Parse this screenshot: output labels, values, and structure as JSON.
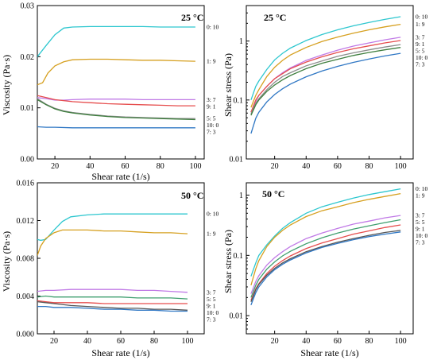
{
  "chart_data": [
    {
      "id": "a",
      "type": "line",
      "title": "25 °C",
      "xlabel": "Shear rate (1/s)",
      "ylabel": "Viscosity (Pa·s)",
      "xlim": [
        10,
        105
      ],
      "ylim": [
        0,
        0.03
      ],
      "yscale": "linear",
      "xticks": [
        20,
        40,
        60,
        80,
        100
      ],
      "yticks": [
        0.0,
        0.01,
        0.02,
        0.03
      ],
      "ytick_labels": [
        "0.00",
        "0.01",
        "0.02",
        "0.03"
      ],
      "series": [
        {
          "name": "0: 10",
          "color": "#2ec7cf",
          "x": [
            10,
            15,
            20,
            25,
            30,
            40,
            50,
            60,
            70,
            80,
            90,
            100
          ],
          "y": [
            0.02,
            0.0222,
            0.0243,
            0.0256,
            0.0258,
            0.0259,
            0.0259,
            0.0259,
            0.0259,
            0.0258,
            0.0258,
            0.0258
          ]
        },
        {
          "name": "1: 9",
          "color": "#d6a020",
          "x": [
            10,
            13,
            16,
            20,
            25,
            30,
            40,
            50,
            60,
            70,
            80,
            90,
            100
          ],
          "y": [
            0.0145,
            0.0149,
            0.0168,
            0.0182,
            0.019,
            0.0194,
            0.0195,
            0.0195,
            0.0194,
            0.0193,
            0.0193,
            0.0192,
            0.0191
          ]
        },
        {
          "name": "3: 7",
          "color": "#c07ae6",
          "x": [
            10,
            15,
            20,
            25,
            30,
            40,
            50,
            60,
            70,
            80,
            90,
            100
          ],
          "y": [
            0.012,
            0.0118,
            0.0115,
            0.0115,
            0.0116,
            0.0117,
            0.0117,
            0.0117,
            0.0116,
            0.0116,
            0.0116,
            0.0116
          ]
        },
        {
          "name": "9: 1",
          "color": "#e64d4d",
          "x": [
            10,
            15,
            20,
            30,
            40,
            50,
            60,
            70,
            80,
            90,
            100
          ],
          "y": [
            0.0124,
            0.012,
            0.0116,
            0.0112,
            0.011,
            0.0108,
            0.0107,
            0.0106,
            0.0105,
            0.0104,
            0.0104
          ]
        },
        {
          "name": "5: 5",
          "color": "#8c8c8c",
          "x": [
            10,
            15,
            20,
            25,
            30,
            40,
            50,
            60,
            70,
            80,
            90,
            100
          ],
          "y": [
            0.0118,
            0.0107,
            0.0099,
            0.0094,
            0.0091,
            0.0087,
            0.0084,
            0.0082,
            0.0081,
            0.008,
            0.0079,
            0.0079
          ]
        },
        {
          "name": "10: 0",
          "color": "#3f7f3f",
          "x": [
            10,
            15,
            20,
            25,
            30,
            40,
            50,
            60,
            70,
            80,
            90,
            100
          ],
          "y": [
            0.0116,
            0.0106,
            0.0098,
            0.0093,
            0.009,
            0.0086,
            0.0083,
            0.0081,
            0.008,
            0.0079,
            0.0078,
            0.0077
          ]
        },
        {
          "name": "7: 3",
          "color": "#2f77c4",
          "x": [
            10,
            15,
            20,
            30,
            40,
            50,
            60,
            70,
            80,
            90,
            100
          ],
          "y": [
            0.0063,
            0.0062,
            0.0062,
            0.0061,
            0.0061,
            0.0061,
            0.0061,
            0.0061,
            0.0061,
            0.0061,
            0.0061
          ]
        }
      ]
    },
    {
      "id": "b",
      "type": "line",
      "title": "25 °C",
      "xlabel": "",
      "ylabel": "Shear stress (Pa)",
      "xlim": [
        2,
        108
      ],
      "ylim": [
        0.01,
        4
      ],
      "yscale": "log",
      "xticks": [
        20,
        40,
        60,
        80,
        100
      ],
      "yticks": [
        0.01,
        0.1,
        1
      ],
      "ytick_labels": [
        "0.01",
        "0.1",
        "1"
      ],
      "series": [
        {
          "name": "0: 10",
          "color": "#2ec7cf",
          "x": [
            5,
            8,
            10,
            15,
            20,
            25,
            30,
            40,
            50,
            60,
            70,
            80,
            90,
            100
          ],
          "y": [
            0.1,
            0.17,
            0.21,
            0.33,
            0.48,
            0.62,
            0.76,
            1.02,
            1.29,
            1.55,
            1.81,
            2.07,
            2.33,
            2.59
          ]
        },
        {
          "name": "1: 9",
          "color": "#d6a020",
          "x": [
            5,
            8,
            10,
            15,
            20,
            25,
            30,
            40,
            50,
            60,
            70,
            80,
            90,
            100
          ],
          "y": [
            0.075,
            0.12,
            0.15,
            0.25,
            0.36,
            0.47,
            0.58,
            0.78,
            0.98,
            1.17,
            1.36,
            1.55,
            1.74,
            1.92
          ]
        },
        {
          "name": "3: 7",
          "color": "#c07ae6",
          "x": [
            5,
            8,
            10,
            15,
            20,
            25,
            30,
            40,
            50,
            60,
            70,
            80,
            90,
            100
          ],
          "y": [
            0.062,
            0.095,
            0.12,
            0.17,
            0.23,
            0.29,
            0.35,
            0.47,
            0.58,
            0.7,
            0.82,
            0.93,
            1.05,
            1.16
          ]
        },
        {
          "name": "9: 1",
          "color": "#e64d4d",
          "x": [
            5,
            8,
            10,
            15,
            20,
            25,
            30,
            40,
            50,
            60,
            70,
            80,
            90,
            100
          ],
          "y": [
            0.062,
            0.1,
            0.12,
            0.17,
            0.23,
            0.28,
            0.34,
            0.44,
            0.54,
            0.64,
            0.74,
            0.83,
            0.93,
            1.02
          ]
        },
        {
          "name": "5: 5",
          "color": "#8c8c8c",
          "x": [
            5,
            8,
            10,
            15,
            20,
            25,
            30,
            40,
            50,
            60,
            70,
            80,
            90,
            100
          ],
          "y": [
            0.058,
            0.088,
            0.105,
            0.15,
            0.2,
            0.25,
            0.29,
            0.38,
            0.46,
            0.55,
            0.63,
            0.71,
            0.79,
            0.87
          ]
        },
        {
          "name": "10: 0",
          "color": "#3f7f3f",
          "x": [
            5,
            8,
            10,
            15,
            20,
            25,
            30,
            40,
            50,
            60,
            70,
            80,
            90,
            100
          ],
          "y": [
            0.055,
            0.083,
            0.1,
            0.14,
            0.18,
            0.22,
            0.26,
            0.34,
            0.42,
            0.49,
            0.57,
            0.64,
            0.71,
            0.78
          ]
        },
        {
          "name": "7: 3",
          "color": "#2f77c4",
          "x": [
            5,
            8,
            10,
            15,
            20,
            25,
            30,
            40,
            50,
            60,
            70,
            80,
            90,
            100
          ],
          "y": [
            0.027,
            0.049,
            0.062,
            0.093,
            0.124,
            0.155,
            0.186,
            0.248,
            0.31,
            0.372,
            0.434,
            0.496,
            0.558,
            0.62
          ]
        }
      ]
    },
    {
      "id": "c",
      "type": "line",
      "title": "50 °C",
      "xlabel": "Shear rate (1/s)",
      "ylabel": "Viscosity (Pa·s)",
      "xlim": [
        10,
        110
      ],
      "ylim": [
        0,
        0.016
      ],
      "yscale": "linear",
      "xticks": [
        20,
        40,
        60,
        80,
        100
      ],
      "yticks": [
        0.0,
        0.004,
        0.008,
        0.012,
        0.016
      ],
      "ytick_labels": [
        "0.000",
        "0.004",
        "0.008",
        "0.012",
        "0.016"
      ],
      "series": [
        {
          "name": "0: 10",
          "color": "#2ec7cf",
          "x": [
            10,
            12,
            15,
            20,
            25,
            30,
            40,
            50,
            60,
            70,
            80,
            90,
            100
          ],
          "y": [
            0.01,
            0.0099,
            0.01,
            0.011,
            0.0119,
            0.0124,
            0.0126,
            0.0127,
            0.0127,
            0.0127,
            0.0127,
            0.0127,
            0.0127
          ]
        },
        {
          "name": "1: 9",
          "color": "#d6a020",
          "x": [
            10,
            12,
            15,
            20,
            25,
            30,
            40,
            50,
            60,
            70,
            80,
            90,
            100
          ],
          "y": [
            0.0083,
            0.0093,
            0.0101,
            0.0107,
            0.011,
            0.011,
            0.011,
            0.0109,
            0.0109,
            0.0108,
            0.0107,
            0.0107,
            0.0106
          ]
        },
        {
          "name": "3: 7",
          "color": "#c07ae6",
          "x": [
            10,
            15,
            20,
            30,
            40,
            50,
            60,
            70,
            80,
            90,
            100
          ],
          "y": [
            0.0045,
            0.0046,
            0.0046,
            0.0047,
            0.0047,
            0.0047,
            0.0047,
            0.0046,
            0.0046,
            0.0045,
            0.0044
          ]
        },
        {
          "name": "5: 5",
          "color": "#3f9f6f",
          "x": [
            10,
            15,
            20,
            30,
            40,
            50,
            60,
            70,
            80,
            90,
            100
          ],
          "y": [
            0.0039,
            0.004,
            0.0039,
            0.0039,
            0.0039,
            0.0039,
            0.0039,
            0.0038,
            0.0038,
            0.0038,
            0.0037
          ]
        },
        {
          "name": "9: 1",
          "color": "#e64d4d",
          "x": [
            10,
            15,
            20,
            30,
            40,
            50,
            60,
            70,
            80,
            90,
            100
          ],
          "y": [
            0.0035,
            0.0034,
            0.0033,
            0.0033,
            0.0033,
            0.0032,
            0.0032,
            0.0032,
            0.0032,
            0.0032,
            0.0032
          ]
        },
        {
          "name": "10: 0",
          "color": "#555555",
          "x": [
            10,
            15,
            20,
            30,
            40,
            50,
            60,
            70,
            80,
            90,
            100
          ],
          "y": [
            0.0034,
            0.0033,
            0.0032,
            0.003,
            0.0029,
            0.0028,
            0.0027,
            0.0027,
            0.0026,
            0.0026,
            0.0025
          ]
        },
        {
          "name": "7: 3",
          "color": "#2f77c4",
          "x": [
            10,
            15,
            20,
            30,
            40,
            50,
            60,
            70,
            80,
            90,
            100
          ],
          "y": [
            0.0029,
            0.0029,
            0.0028,
            0.0028,
            0.0027,
            0.0026,
            0.0026,
            0.0025,
            0.0025,
            0.0024,
            0.0024
          ]
        }
      ]
    },
    {
      "id": "d",
      "type": "line",
      "title": "50 °C",
      "xlabel": "Shear rate (1/s)",
      "ylabel": "Shear stress (Pa)",
      "xlim": [
        2,
        108
      ],
      "ylim": [
        0.005,
        1.6
      ],
      "yscale": "log",
      "xticks": [
        20,
        40,
        60,
        80,
        100
      ],
      "yticks": [
        0.01,
        0.1,
        1
      ],
      "ytick_labels": [
        "0.01",
        "0.1",
        "1"
      ],
      "series": [
        {
          "name": "0: 10",
          "color": "#2ec7cf",
          "x": [
            5,
            8,
            10,
            15,
            20,
            25,
            30,
            40,
            50,
            60,
            70,
            80,
            90,
            100
          ],
          "y": [
            0.045,
            0.075,
            0.1,
            0.15,
            0.21,
            0.28,
            0.35,
            0.5,
            0.64,
            0.76,
            0.89,
            1.02,
            1.14,
            1.27
          ]
        },
        {
          "name": "1: 9",
          "color": "#d6a020",
          "x": [
            5,
            8,
            10,
            15,
            20,
            25,
            30,
            40,
            50,
            60,
            70,
            80,
            90,
            100
          ],
          "y": [
            0.032,
            0.06,
            0.082,
            0.14,
            0.2,
            0.26,
            0.32,
            0.44,
            0.55,
            0.64,
            0.75,
            0.85,
            0.95,
            1.06
          ]
        },
        {
          "name": "3: 7",
          "color": "#c07ae6",
          "x": [
            5,
            8,
            10,
            15,
            20,
            25,
            30,
            40,
            50,
            60,
            70,
            80,
            90,
            100
          ],
          "y": [
            0.023,
            0.037,
            0.046,
            0.069,
            0.092,
            0.115,
            0.14,
            0.19,
            0.235,
            0.28,
            0.33,
            0.37,
            0.42,
            0.46
          ]
        },
        {
          "name": "5: 5",
          "color": "#3f9f6f",
          "x": [
            5,
            8,
            10,
            15,
            20,
            25,
            30,
            40,
            50,
            60,
            70,
            80,
            90,
            100
          ],
          "y": [
            0.02,
            0.032,
            0.04,
            0.059,
            0.078,
            0.098,
            0.117,
            0.156,
            0.195,
            0.234,
            0.273,
            0.31,
            0.35,
            0.39
          ]
        },
        {
          "name": "9: 1",
          "color": "#e64d4d",
          "x": [
            5,
            8,
            10,
            15,
            20,
            25,
            30,
            40,
            50,
            60,
            70,
            80,
            90,
            100
          ],
          "y": [
            0.018,
            0.028,
            0.034,
            0.05,
            0.066,
            0.082,
            0.098,
            0.13,
            0.16,
            0.19,
            0.225,
            0.255,
            0.29,
            0.32
          ]
        },
        {
          "name": "10: 0",
          "color": "#555555",
          "x": [
            5,
            8,
            10,
            15,
            20,
            25,
            30,
            40,
            50,
            60,
            70,
            80,
            90,
            100
          ],
          "y": [
            0.017,
            0.027,
            0.033,
            0.047,
            0.061,
            0.075,
            0.088,
            0.115,
            0.14,
            0.165,
            0.19,
            0.215,
            0.24,
            0.26
          ]
        },
        {
          "name": "7: 3",
          "color": "#2f77c4",
          "x": [
            5,
            8,
            10,
            15,
            20,
            25,
            30,
            40,
            50,
            60,
            70,
            80,
            90,
            100
          ],
          "y": [
            0.015,
            0.024,
            0.03,
            0.044,
            0.058,
            0.071,
            0.084,
            0.11,
            0.135,
            0.158,
            0.182,
            0.205,
            0.225,
            0.245
          ]
        }
      ]
    }
  ]
}
